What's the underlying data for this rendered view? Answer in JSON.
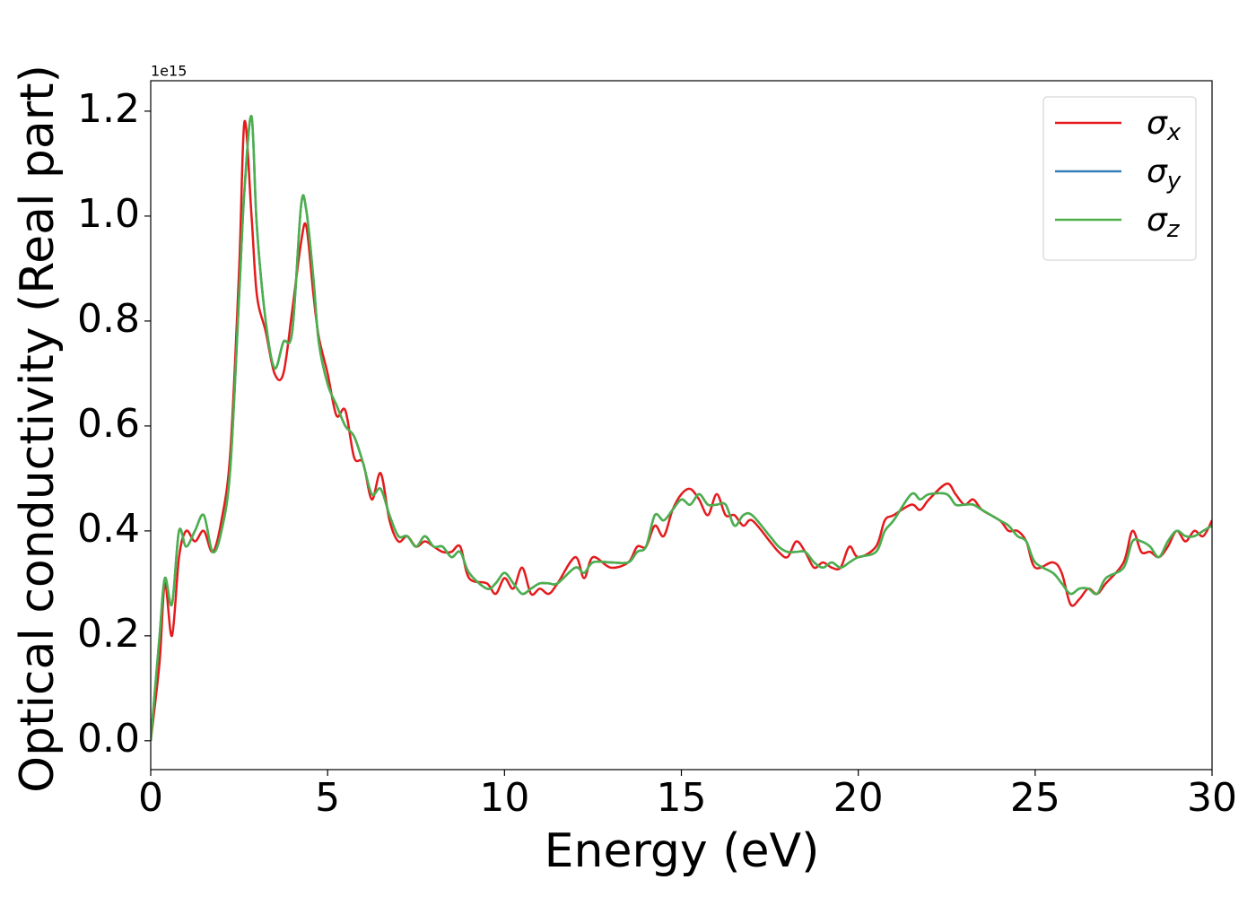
{
  "chart_data": {
    "type": "line",
    "xlabel": "Energy (eV)",
    "ylabel": "Optical conductivity (Real part)",
    "offset_label": "1e15",
    "x": [
      0,
      0.25,
      0.4,
      0.6,
      0.8,
      1,
      1.25,
      1.5,
      1.75,
      2,
      2.25,
      2.5,
      2.65,
      2.85,
      3,
      3.25,
      3.5,
      3.75,
      4,
      4.25,
      4.4,
      4.6,
      4.75,
      5,
      5.25,
      5.5,
      5.75,
      6,
      6.25,
      6.5,
      6.75,
      7,
      7.25,
      7.5,
      7.75,
      8,
      8.25,
      8.5,
      8.75,
      9,
      9.5,
      9.75,
      10,
      10.25,
      10.5,
      10.75,
      11,
      11.25,
      11.5,
      12,
      12.25,
      12.5,
      13,
      13.5,
      13.75,
      14,
      14.25,
      14.5,
      14.75,
      15,
      15.25,
      15.5,
      15.75,
      16,
      16.25,
      16.5,
      16.75,
      17,
      17.5,
      17.75,
      18,
      18.25,
      18.5,
      18.75,
      19,
      19.25,
      19.5,
      19.75,
      20,
      20.5,
      20.75,
      21,
      21.5,
      21.75,
      22,
      22.5,
      22.75,
      23,
      23.25,
      23.5,
      24,
      24.25,
      24.5,
      24.75,
      25,
      25.5,
      25.75,
      26,
      26.25,
      26.5,
      26.75,
      27,
      27.5,
      27.75,
      28,
      28.25,
      28.5,
      28.75,
      29,
      29.25,
      29.5,
      29.75,
      30
    ],
    "series": [
      {
        "name": "σx",
        "color": "#e41a1c",
        "values": [
          0,
          0.15,
          0.3,
          0.2,
          0.35,
          0.4,
          0.38,
          0.4,
          0.36,
          0.42,
          0.55,
          0.9,
          1.18,
          1.0,
          0.85,
          0.78,
          0.7,
          0.7,
          0.82,
          0.95,
          0.98,
          0.85,
          0.77,
          0.7,
          0.62,
          0.63,
          0.54,
          0.53,
          0.46,
          0.51,
          0.42,
          0.38,
          0.39,
          0.37,
          0.38,
          0.37,
          0.36,
          0.36,
          0.37,
          0.31,
          0.3,
          0.28,
          0.31,
          0.29,
          0.33,
          0.28,
          0.29,
          0.28,
          0.3,
          0.35,
          0.31,
          0.35,
          0.33,
          0.34,
          0.37,
          0.37,
          0.41,
          0.39,
          0.44,
          0.47,
          0.48,
          0.46,
          0.43,
          0.47,
          0.43,
          0.43,
          0.41,
          0.42,
          0.38,
          0.36,
          0.35,
          0.38,
          0.36,
          0.33,
          0.34,
          0.33,
          0.33,
          0.37,
          0.35,
          0.37,
          0.42,
          0.43,
          0.45,
          0.44,
          0.46,
          0.49,
          0.47,
          0.45,
          0.46,
          0.44,
          0.42,
          0.4,
          0.4,
          0.38,
          0.33,
          0.34,
          0.32,
          0.26,
          0.27,
          0.29,
          0.28,
          0.3,
          0.34,
          0.4,
          0.36,
          0.36,
          0.35,
          0.37,
          0.4,
          0.38,
          0.4,
          0.39,
          0.42
        ]
      },
      {
        "name": "σy",
        "color": "#377eb8",
        "values": [
          0,
          0.2,
          0.31,
          0.26,
          0.4,
          0.37,
          0.4,
          0.43,
          0.36,
          0.4,
          0.52,
          0.85,
          1.05,
          1.19,
          0.98,
          0.8,
          0.71,
          0.76,
          0.78,
          1.02,
          1.01,
          0.88,
          0.76,
          0.68,
          0.64,
          0.6,
          0.58,
          0.53,
          0.47,
          0.48,
          0.43,
          0.39,
          0.39,
          0.37,
          0.39,
          0.37,
          0.37,
          0.35,
          0.36,
          0.32,
          0.29,
          0.3,
          0.32,
          0.3,
          0.28,
          0.29,
          0.3,
          0.3,
          0.3,
          0.33,
          0.32,
          0.34,
          0.34,
          0.34,
          0.36,
          0.37,
          0.43,
          0.42,
          0.44,
          0.46,
          0.45,
          0.47,
          0.45,
          0.45,
          0.45,
          0.41,
          0.43,
          0.43,
          0.39,
          0.37,
          0.36,
          0.36,
          0.36,
          0.34,
          0.33,
          0.34,
          0.33,
          0.34,
          0.35,
          0.36,
          0.4,
          0.42,
          0.47,
          0.46,
          0.47,
          0.47,
          0.45,
          0.45,
          0.45,
          0.44,
          0.42,
          0.41,
          0.39,
          0.38,
          0.34,
          0.32,
          0.3,
          0.28,
          0.29,
          0.29,
          0.28,
          0.31,
          0.33,
          0.38,
          0.38,
          0.37,
          0.35,
          0.38,
          0.4,
          0.39,
          0.39,
          0.4,
          0.41
        ]
      },
      {
        "name": "σz",
        "color": "#4daf4a",
        "values": [
          0,
          0.2,
          0.31,
          0.26,
          0.4,
          0.37,
          0.4,
          0.43,
          0.36,
          0.4,
          0.52,
          0.85,
          1.05,
          1.19,
          0.98,
          0.8,
          0.71,
          0.76,
          0.78,
          1.02,
          1.01,
          0.88,
          0.76,
          0.68,
          0.64,
          0.6,
          0.58,
          0.53,
          0.47,
          0.48,
          0.43,
          0.39,
          0.39,
          0.37,
          0.39,
          0.37,
          0.37,
          0.35,
          0.36,
          0.32,
          0.29,
          0.3,
          0.32,
          0.3,
          0.28,
          0.29,
          0.3,
          0.3,
          0.3,
          0.33,
          0.32,
          0.34,
          0.34,
          0.34,
          0.36,
          0.37,
          0.43,
          0.42,
          0.44,
          0.46,
          0.45,
          0.47,
          0.45,
          0.45,
          0.45,
          0.41,
          0.43,
          0.43,
          0.39,
          0.37,
          0.36,
          0.36,
          0.36,
          0.34,
          0.33,
          0.34,
          0.33,
          0.34,
          0.35,
          0.36,
          0.4,
          0.42,
          0.47,
          0.46,
          0.47,
          0.47,
          0.45,
          0.45,
          0.45,
          0.44,
          0.42,
          0.41,
          0.39,
          0.38,
          0.34,
          0.32,
          0.3,
          0.28,
          0.29,
          0.29,
          0.28,
          0.31,
          0.33,
          0.38,
          0.38,
          0.37,
          0.35,
          0.38,
          0.4,
          0.39,
          0.39,
          0.4,
          0.41
        ]
      }
    ],
    "xlim": [
      0,
      30
    ],
    "xticks": [
      0,
      5,
      10,
      15,
      20,
      25,
      30
    ],
    "ylim": [
      -0.055,
      1.258
    ],
    "yticks": [
      {
        "value": 0,
        "label": "0.0"
      },
      0.2,
      0.4,
      0.6,
      0.8,
      {
        "value": 1,
        "label": "1.0"
      },
      1.2
    ],
    "grid": false,
    "legend": "upper right"
  }
}
